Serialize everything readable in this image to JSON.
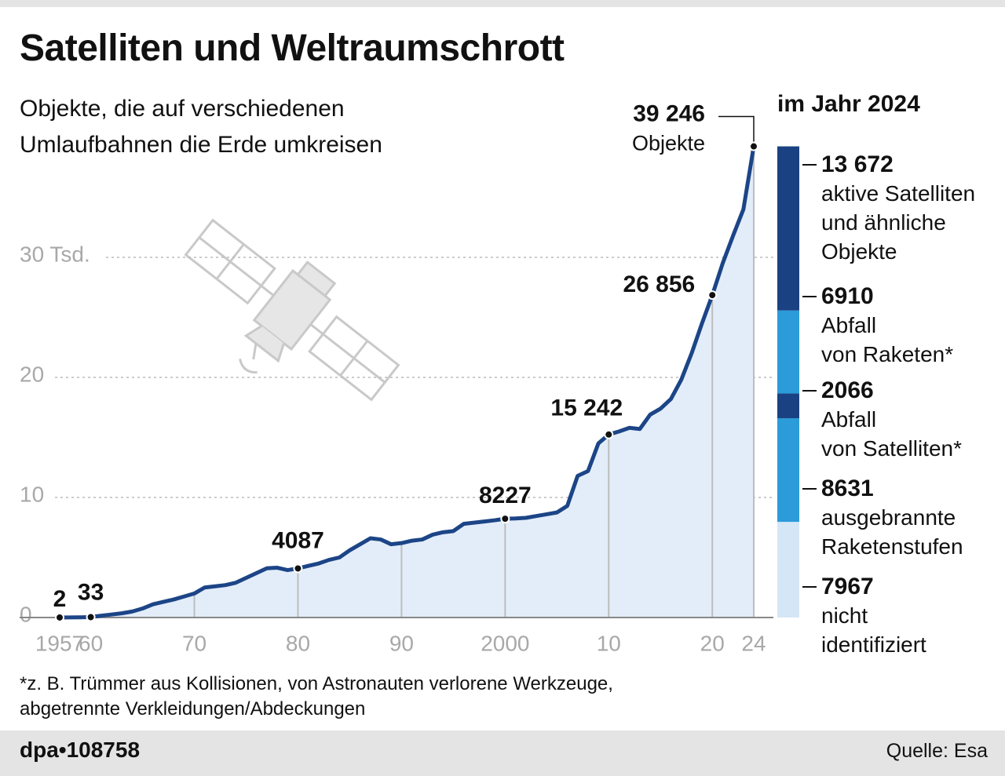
{
  "chart_data": [
    {
      "type": "line",
      "title": "Satelliten und Weltraumschrott",
      "subtitle": "Objekte, die auf verschiedenen\nUmlaufbahnen die Erde umkreisen",
      "x": [
        1957,
        1958,
        1959,
        1960,
        1961,
        1962,
        1963,
        1964,
        1965,
        1966,
        1967,
        1968,
        1969,
        1970,
        1971,
        1972,
        1973,
        1974,
        1975,
        1976,
        1977,
        1978,
        1979,
        1980,
        1981,
        1982,
        1983,
        1984,
        1985,
        1986,
        1987,
        1988,
        1989,
        1990,
        1991,
        1992,
        1993,
        1994,
        1995,
        1996,
        1997,
        1998,
        1999,
        2000,
        2001,
        2002,
        2003,
        2004,
        2005,
        2006,
        2007,
        2008,
        2009,
        2010,
        2011,
        2012,
        2013,
        2014,
        2015,
        2016,
        2017,
        2018,
        2019,
        2020,
        2021,
        2022,
        2023,
        2024
      ],
      "values": [
        2,
        10,
        20,
        33,
        150,
        250,
        350,
        500,
        750,
        1100,
        1300,
        1500,
        1750,
        2000,
        2500,
        2600,
        2700,
        2900,
        3300,
        3700,
        4100,
        4150,
        3950,
        4087,
        4300,
        4500,
        4800,
        5000,
        5600,
        6100,
        6600,
        6500,
        6100,
        6200,
        6400,
        6500,
        6900,
        7100,
        7200,
        7800,
        7900,
        8000,
        8100,
        8227,
        8250,
        8300,
        8450,
        8600,
        8750,
        9300,
        11800,
        12200,
        14500,
        15242,
        15500,
        15800,
        15700,
        16900,
        17400,
        18200,
        19800,
        22000,
        24500,
        26856,
        29500,
        31800,
        34000,
        39246
      ],
      "value_labels": [
        "2",
        null,
        null,
        "33",
        null,
        null,
        null,
        null,
        null,
        null,
        null,
        null,
        null,
        null,
        null,
        null,
        null,
        null,
        null,
        null,
        null,
        null,
        null,
        "4087",
        null,
        null,
        null,
        null,
        null,
        null,
        null,
        null,
        null,
        null,
        null,
        null,
        null,
        null,
        null,
        null,
        null,
        null,
        null,
        "8227",
        null,
        null,
        null,
        null,
        null,
        null,
        null,
        null,
        null,
        "15 242",
        null,
        null,
        null,
        null,
        null,
        null,
        null,
        null,
        null,
        "26 856",
        null,
        null,
        null,
        "39 246"
      ],
      "annotation": "Objekte",
      "color": "#1c4587",
      "fill": "#e3edf9",
      "xlim": [
        1957,
        2024
      ],
      "xticks": [
        1957,
        {
          "value": 1960,
          "label": "60"
        },
        {
          "value": 1970,
          "label": "70"
        },
        {
          "value": 1980,
          "label": "80"
        },
        {
          "value": 1990,
          "label": "90"
        },
        2000,
        {
          "value": 2010,
          "label": "10"
        },
        {
          "value": 2020,
          "label": "20"
        },
        {
          "value": 2024,
          "label": "24"
        }
      ],
      "ylim": [
        0,
        40000
      ],
      "yticks": [
        0,
        {
          "value": 10000,
          "label": "10"
        },
        {
          "value": 20000,
          "label": "20"
        },
        {
          "value": 30000,
          "label": "30 Tsd."
        }
      ],
      "grid": true
    },
    {
      "type": "stacked-bar",
      "title": "im Jahr 2024",
      "series": [
        {
          "name": "nicht\nidentifiziert",
          "color": "#d5e6f6",
          "values": [
            7967
          ],
          "value_labels": [
            "7967"
          ]
        },
        {
          "name": "ausgebrannte\nRaketenstufen",
          "color": "#2b9bd9",
          "values": [
            8631
          ],
          "value_labels": [
            "8631"
          ]
        },
        {
          "name": "Abfall\nvon Satelliten*",
          "color": "#1a4282",
          "values": [
            2066
          ],
          "value_labels": [
            "2066"
          ]
        },
        {
          "name": "Abfall\nvon Raketen*",
          "color": "#2b9bd9",
          "values": [
            6910
          ],
          "value_labels": [
            "6910"
          ]
        },
        {
          "name": "aktive Satelliten\nund ähnliche\nObjekte",
          "color": "#1a4282",
          "values": [
            13672
          ],
          "value_labels": [
            "13 672"
          ]
        }
      ],
      "ylim": [
        0,
        40000
      ]
    }
  ],
  "footnote": "*z. B. Trümmer aus Kollisionen, von Astronauten verlorene Werkzeuge,\nabgetrennte Verkleidungen/Abdeckungen",
  "credit": "dpa•108758",
  "source": "Quelle: Esa"
}
